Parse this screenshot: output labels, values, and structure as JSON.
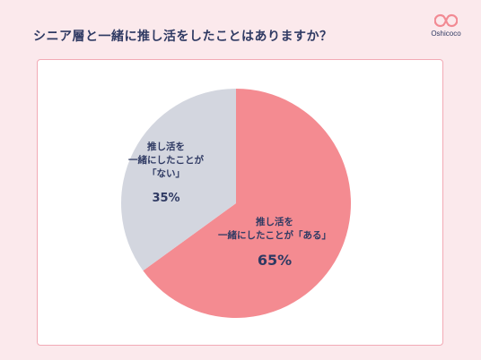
{
  "header": {
    "title": "シニア層と一緒に推し活をしたことはありますか？",
    "logo_text": "Oshicoco"
  },
  "colors": {
    "background": "#fbe9ec",
    "accent": "#f2aab5",
    "text": "#2f3a63",
    "slice_yes": "#f48b91",
    "slice_no": "#d3d6df"
  },
  "chart_data": {
    "type": "pie",
    "title": "シニア層と一緒に推し活をしたことはありますか？",
    "slices": [
      {
        "label_lines": [
          "推し活を",
          "一緒にしたことが「ある」"
        ],
        "value": 65,
        "value_label": "65%",
        "color": "#f48b91"
      },
      {
        "label_lines": [
          "推し活を",
          "一緒にしたことが",
          "「ない」"
        ],
        "value": 35,
        "value_label": "35%",
        "color": "#d3d6df"
      }
    ],
    "start_angle": "12 o'clock",
    "direction": "clockwise",
    "legend": "none"
  }
}
